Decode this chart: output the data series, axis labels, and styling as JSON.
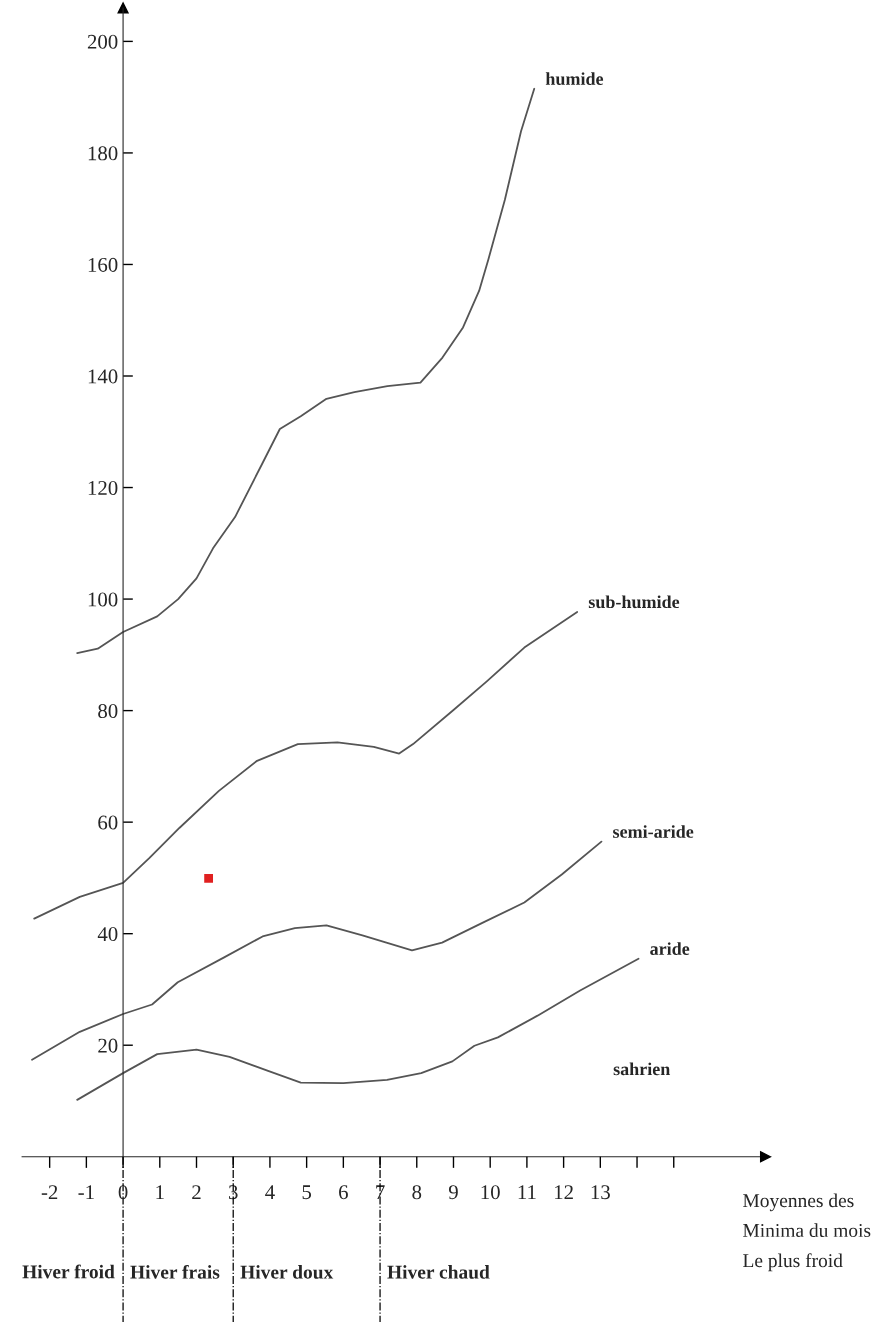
{
  "chart_data": {
    "type": "line",
    "xlabel": "Moyennes des\nMinima du mois\nLe plus froid",
    "xlim": [
      -2.75,
      17.5
    ],
    "ylim": [
      0,
      206
    ],
    "xticks": [
      -2,
      -1,
      0,
      1,
      2,
      3,
      4,
      5,
      6,
      7,
      8,
      9,
      10,
      11,
      12,
      13,
      {
        "value": 14,
        "label": null
      },
      {
        "value": 15,
        "label": null
      }
    ],
    "yticks": [
      20,
      40,
      60,
      80,
      100,
      120,
      140,
      160,
      180,
      200
    ],
    "grid": false,
    "legend": false,
    "marker": "none",
    "line_style": "solid",
    "series": [
      {
        "name": "humide",
        "color": "#555555",
        "x": [
          -1.25,
          -0.69,
          0,
          0.93,
          1.5,
          2,
          2.45,
          3.05,
          3.8,
          4.27,
          4.84,
          5.54,
          6.3,
          7.2,
          8.1,
          8.7,
          9.26,
          9.7,
          9.95,
          10.4,
          10.84,
          11.2
        ],
        "values": [
          90.3,
          91.1,
          94.1,
          96.9,
          100,
          103.7,
          109.1,
          114.7,
          124.4,
          130.5,
          132.8,
          135.9,
          137.1,
          138.2,
          138.8,
          143.3,
          148.7,
          155.3,
          160.9,
          171.6,
          183.9,
          191.5
        ]
      },
      {
        "name": "sub-humide",
        "color": "#555555",
        "x": [
          -2.42,
          -1.18,
          0,
          0.72,
          1.54,
          2.61,
          3.65,
          4.76,
          5.84,
          6.83,
          7.52,
          7.9,
          9.0,
          9.9,
          10.93,
          12.37
        ],
        "values": [
          42.7,
          46.6,
          49.1,
          53.6,
          59,
          65.6,
          71,
          74,
          74.3,
          73.5,
          72.3,
          74,
          80.1,
          85.2,
          91.3,
          97.7
        ]
      },
      {
        "name": "semi-aride",
        "color": "#555555",
        "x": [
          -2.48,
          -1.18,
          0,
          0.79,
          1.49,
          2.74,
          3.8,
          4.68,
          5.54,
          6.52,
          7.87,
          8.69,
          9.87,
          10.93,
          11.95,
          13.03
        ],
        "values": [
          17.4,
          22.4,
          25.6,
          27.3,
          31.3,
          35.7,
          39.5,
          41,
          41.5,
          39.7,
          37,
          38.4,
          42.2,
          45.6,
          50.6,
          56.5
        ]
      },
      {
        "name": "aride",
        "color": "#555555",
        "x": [
          -1.25,
          0,
          0.93,
          2,
          2.9,
          3.95,
          4.84,
          6,
          7.19,
          8.12,
          8.97,
          9.57,
          10.21,
          11.29,
          12.45,
          14.04
        ],
        "values": [
          10.2,
          15,
          18.4,
          19.2,
          17.9,
          15.4,
          13.3,
          13.2,
          13.8,
          15,
          17.1,
          19.9,
          21.4,
          25.3,
          29.8,
          35.5
        ]
      },
      {
        "type": "scatter",
        "marker": "square",
        "color": "#e02020",
        "x": [
          2.33
        ],
        "values": [
          49.9
        ]
      }
    ],
    "annotations": [
      "Hiver froid",
      "sahrien"
    ],
    "ref_lines": [
      {
        "axis": "x",
        "value": 0,
        "line_style": "dashdot",
        "label": "Hiver frais"
      },
      {
        "axis": "x",
        "value": 3,
        "line_style": "dashdot",
        "label": "Hiver doux"
      },
      {
        "axis": "x",
        "value": 7,
        "line_style": "dashdot",
        "label": "Hiver chaud"
      }
    ]
  }
}
